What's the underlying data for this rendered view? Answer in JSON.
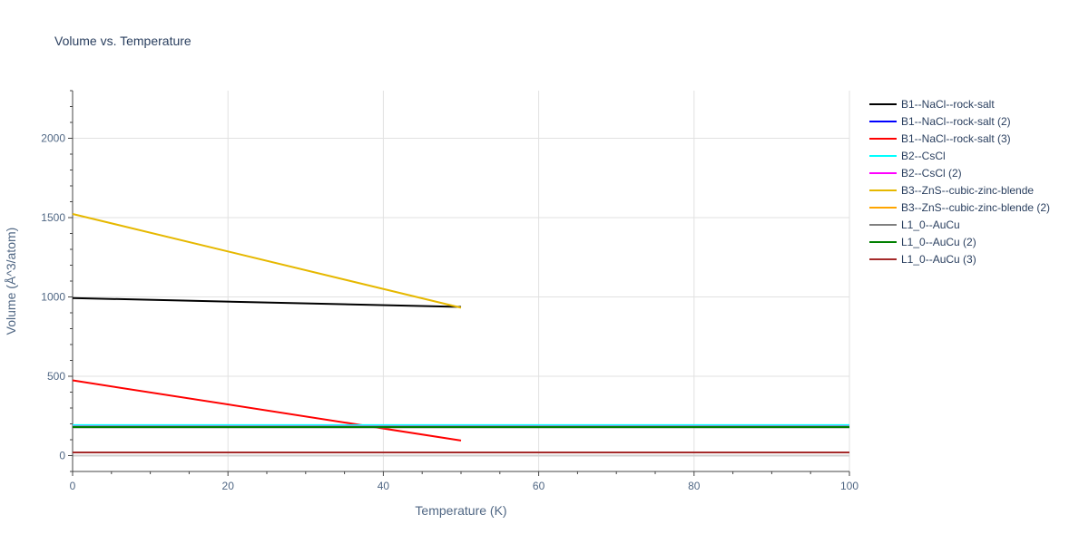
{
  "chart_data": {
    "type": "line",
    "title": "Volume vs. Temperature",
    "xlabel": "Temperature (K)",
    "ylabel": "Volume (Å^3/atom)",
    "xlim": [
      0,
      100
    ],
    "ylim": [
      -100,
      2300
    ],
    "xticks": [
      0,
      20,
      40,
      60,
      80,
      100
    ],
    "yticks": [
      0,
      500,
      1000,
      1500,
      2000
    ],
    "grid": true,
    "legend_position": "right",
    "series": [
      {
        "name": "B1--NaCl--rock-salt",
        "color": "#000000",
        "x": [
          0,
          50
        ],
        "y": [
          993,
          937
        ]
      },
      {
        "name": "B1--NaCl--rock-salt (2)",
        "color": "#0000ff",
        "x": [
          0,
          100
        ],
        "y": [
          185,
          185
        ]
      },
      {
        "name": "B1--NaCl--rock-salt (3)",
        "color": "#ff0000",
        "x": [
          0,
          50
        ],
        "y": [
          474,
          95
        ]
      },
      {
        "name": "B2--CsCl",
        "color": "#00ffff",
        "x": [
          0,
          100
        ],
        "y": [
          192,
          192
        ]
      },
      {
        "name": "B2--CsCl (2)",
        "color": "#ff00ff",
        "x": [
          0,
          100
        ],
        "y": [
          183,
          183
        ]
      },
      {
        "name": "B3--ZnS--cubic-zinc-blende",
        "color": "#e6b800",
        "x": [
          0,
          50
        ],
        "y": [
          1523,
          932
        ]
      },
      {
        "name": "B3--ZnS--cubic-zinc-blende (2)",
        "color": "#ffa500",
        "x": [
          0,
          100
        ],
        "y": [
          181,
          181
        ]
      },
      {
        "name": "L1_0--AuCu",
        "color": "#808080",
        "x": [
          0,
          100
        ],
        "y": [
          178,
          178
        ]
      },
      {
        "name": "L1_0--AuCu (2)",
        "color": "#008000",
        "x": [
          0,
          100
        ],
        "y": [
          180,
          180
        ]
      },
      {
        "name": "L1_0--AuCu (3)",
        "color": "#a52a2a",
        "x": [
          0,
          100
        ],
        "y": [
          20,
          20
        ]
      }
    ]
  }
}
